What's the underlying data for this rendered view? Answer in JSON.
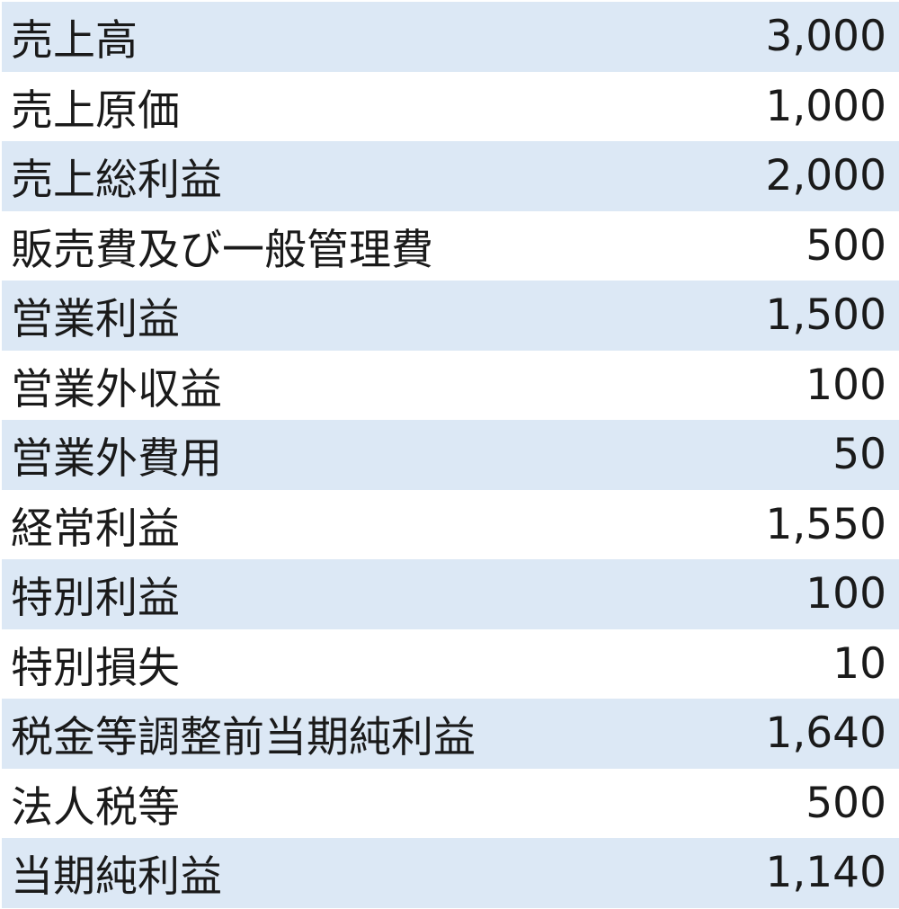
{
  "rows": [
    {
      "label": "売上高",
      "value": "3,000"
    },
    {
      "label": "売上原価",
      "value": "1,000"
    },
    {
      "label": "売上総利益",
      "value": "2,000"
    },
    {
      "label": "販売費及び一般管理費",
      "value": "500"
    },
    {
      "label": "営業利益",
      "value": "1,500"
    },
    {
      "label": "営業外収益",
      "value": "100"
    },
    {
      "label": "営業外費用",
      "value": "50"
    },
    {
      "label": "経常利益",
      "value": "1,550"
    },
    {
      "label": "特別利益",
      "value": "100"
    },
    {
      "label": "特別損失",
      "value": "10"
    },
    {
      "label": "税金等調整前当期純利益",
      "value": "1,640"
    },
    {
      "label": "法人税等",
      "value": "500"
    },
    {
      "label": "当期純利益",
      "value": "1,140"
    }
  ],
  "colors": {
    "band": "#dce8f5",
    "alt": "#ffffff"
  }
}
